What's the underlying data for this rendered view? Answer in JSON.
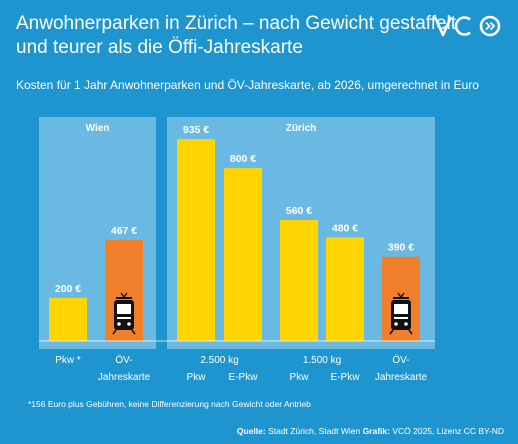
{
  "title_lines": [
    "Anwohnerparken in Zürich – nach Gewicht gestaffelt",
    "und teurer als die Öffi-Jahreskarte"
  ],
  "logo_text": "VCÖ",
  "subtitle": "Kosten für 1 Jahr Anwohnerparken und ÖV-Jahreskarte, ab 2026, umgerechnet in Euro",
  "footnote": "*156 Euro plus Gebühren, keine Differenzierung nach Gewicht oder Antrieb",
  "source": {
    "label_sources": "Quelle:",
    "sources_text": "Stadt Zürich, Stadt Wien",
    "label_graphic": "Grafik:",
    "graphic_text": "VCÖ 2025, Lizenz CC BY-ND"
  },
  "colors": {
    "background": "#1f95cf",
    "panel": "#6ab9e2",
    "parking_bar": "#ffd400",
    "transit_bar": "#f07f2c",
    "text": "#ffffff"
  },
  "chart_data": {
    "type": "bar",
    "unit": "€",
    "ylim": [
      0,
      1000
    ],
    "grid": false,
    "legend": "none",
    "panels": [
      {
        "name": "Wien",
        "bars": [
          {
            "category": "Pkw *",
            "value": 200,
            "label": "200 €",
            "kind": "parking"
          },
          {
            "category": "ÖV-Jahreskarte",
            "value": 467,
            "label": "467 €",
            "kind": "transit",
            "icon": "tram-icon"
          }
        ],
        "axis_labels": [
          {
            "lines": [
              "Pkw *"
            ]
          },
          {
            "lines": [
              "ÖV-",
              "Jahreskarte"
            ]
          }
        ]
      },
      {
        "name": "Zürich",
        "bars": [
          {
            "category": "2.500 kg Pkw",
            "value": 935,
            "label": "935 €",
            "kind": "parking"
          },
          {
            "category": "2.500 kg E-Pkw",
            "value": 800,
            "label": "800 €",
            "kind": "parking"
          },
          {
            "category": "1.500 kg Pkw",
            "value": 560,
            "label": "560 €",
            "kind": "parking"
          },
          {
            "category": "1.500 kg E-Pkw",
            "value": 480,
            "label": "480 €",
            "kind": "parking"
          },
          {
            "category": "ÖV-Jahreskarte",
            "value": 390,
            "label": "390 €",
            "kind": "transit",
            "icon": "tram-icon"
          }
        ],
        "axis_labels": [
          {
            "lines": [
              "2.500 kg"
            ],
            "sub": [
              "Pkw",
              "E-Pkw"
            ]
          },
          {
            "lines": [
              "1.500 kg"
            ],
            "sub": [
              "Pkw",
              "E-Pkw"
            ]
          },
          {
            "lines": [
              "ÖV-",
              "Jahreskarte"
            ]
          }
        ]
      }
    ]
  }
}
